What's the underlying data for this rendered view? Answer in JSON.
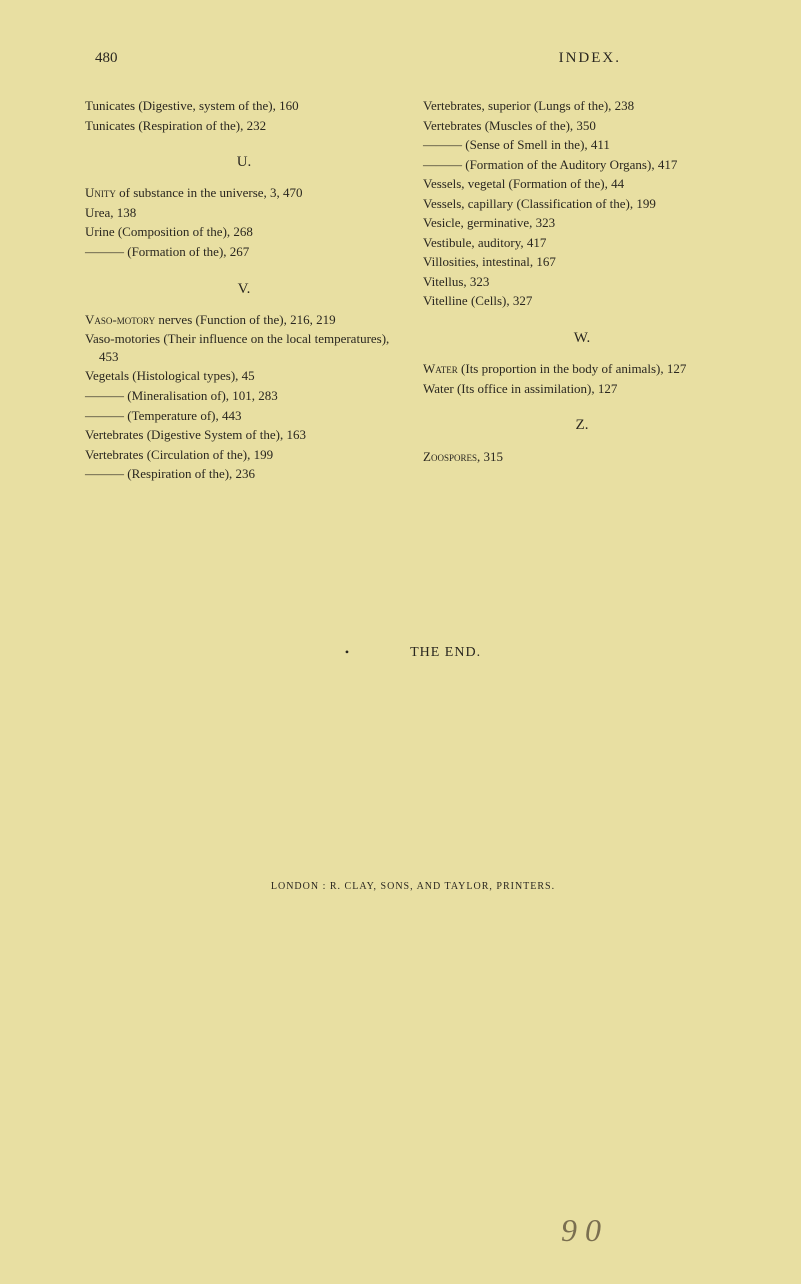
{
  "header": {
    "page_number": "480",
    "title": "INDEX."
  },
  "left_column": {
    "entries_top": [
      "Tunicates (Digestive, system of the), 160",
      "Tunicates (Respiration of the), 232"
    ],
    "section_u": "U.",
    "entries_u": [
      "UNITY of substance in the universe, 3, 470",
      "Urea, 138",
      "Urine (Composition of the), 268",
      "——— (Formation of the), 267"
    ],
    "section_v": "V.",
    "entries_v": [
      "VASO-MOTORY nerves (Function of the), 216, 219",
      "Vaso-motories (Their influence on the local temperatures), 453",
      "Vegetals (Histological types), 45",
      "——— (Mineralisation of), 101, 283",
      "——— (Temperature of), 443",
      "Vertebrates (Digestive System of the), 163",
      "Vertebrates (Circulation of the), 199",
      "——— (Respiration of the), 236"
    ]
  },
  "right_column": {
    "entries_top": [
      "Vertebrates, superior (Lungs of the), 238",
      "Vertebrates (Muscles of the), 350",
      "——— (Sense of Smell in the), 411",
      "——— (Formation of the Auditory Organs), 417",
      "Vessels, vegetal (Formation of the), 44",
      "Vessels, capillary (Classification of the), 199",
      "Vesicle, germinative, 323",
      "Vestibule, auditory, 417",
      "Villosities, intestinal, 167",
      "Vitellus, 323",
      "Vitelline (Cells), 327"
    ],
    "section_w": "W.",
    "entries_w": [
      "WATER (Its proportion in the body of animals), 127",
      "Water (Its office in assimilation), 127"
    ],
    "section_z": "Z.",
    "entries_z": [
      "ZOOSPORES, 315"
    ]
  },
  "footer": {
    "the_end": "THE END.",
    "printer": "LONDON : R. CLAY, SONS, AND TAYLOR, PRINTERS.",
    "mark": "9 0"
  }
}
